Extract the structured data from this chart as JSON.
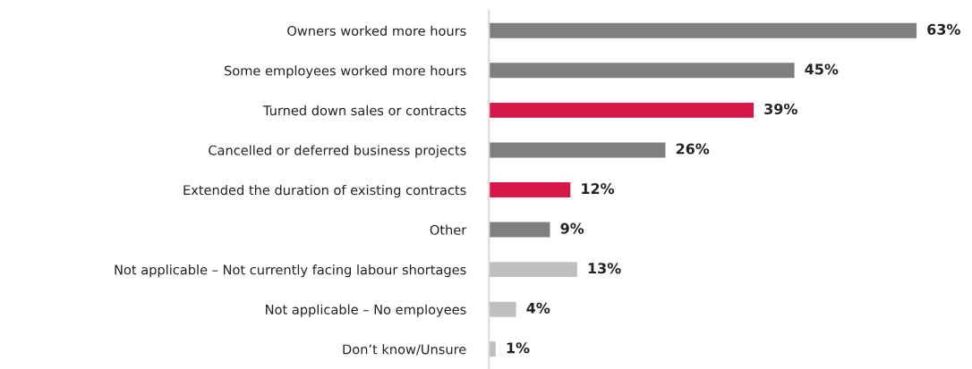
{
  "chart_data": {
    "type": "bar",
    "orientation": "horizontal",
    "categories": [
      "Owners worked more hours",
      "Some employees worked more hours",
      "Turned down sales or contracts",
      "Cancelled or deferred business projects",
      "Extended the duration of existing contracts",
      "Other",
      "Not applicable – Not currently facing labour shortages",
      "Not applicable – No employees",
      "Don’t know/Unsure"
    ],
    "values": [
      63,
      45,
      39,
      26,
      12,
      9,
      13,
      4,
      1
    ],
    "colors": [
      "#7f7f7f",
      "#7f7f7f",
      "#d61747",
      "#7f7f7f",
      "#d61747",
      "#7f7f7f",
      "#bfbfbf",
      "#bfbfbf",
      "#bfbfbf"
    ],
    "value_labels": [
      "63%",
      "45%",
      "39%",
      "26%",
      "12%",
      "9%",
      "13%",
      "4%",
      "1%"
    ],
    "tick_labels": "y"
  }
}
